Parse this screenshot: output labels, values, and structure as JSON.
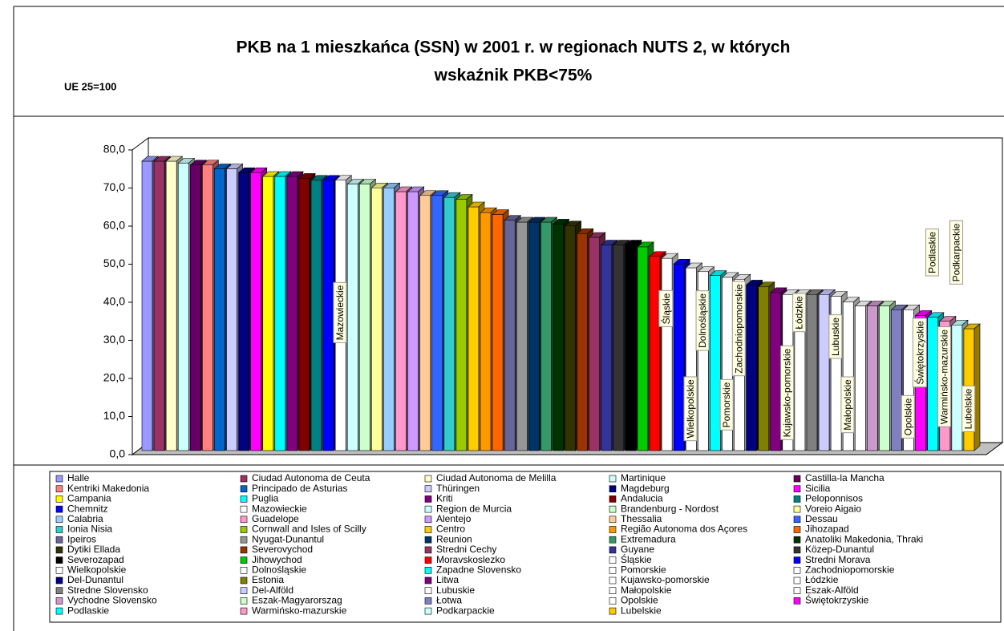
{
  "chart_data": {
    "type": "bar3d",
    "title": "PKB na 1 mieszkańca (SSN) w 2001 r. w regionach NUTS 2, w których",
    "title_line2": "wskaźnik PKB<75%",
    "ylabel": "UE 25=100",
    "categories": [
      "Halle",
      "Ciudad Autonoma de Ceuta",
      "Ciudad Autonoma de Melilla",
      "Martinique",
      "Castilla-la Mancha",
      "Kentriki Makedonia",
      "Principado de Asturias",
      "Thüringen",
      "Magdeburg",
      "Sicilia",
      "Campania",
      "Puglia",
      "Kriti",
      "Andalucia",
      "Peloponnisos",
      "Chemnitz",
      "Mazowieckie",
      "Region de Murcia",
      "Brandenburg - Nordost",
      "Voreio Aigaio",
      "Calabria",
      "Guadelope",
      "Alentejo",
      "Thessalia",
      "Dessau",
      "Ionia Nisia",
      "Cornwall and Isles of Scilly",
      "Centro",
      "Região Autonoma dos Açores",
      "Jihozapad",
      "Ipeiros",
      "Nyugat-Dunantul",
      "Reunion",
      "Extremadura",
      "Anatoliki Makedonia, Thraki",
      "Dytiki Ellada",
      "Severovychod",
      "Stredni Cechy",
      "Guyane",
      "Közep-Dunantul",
      "Severozapad",
      "Jihowychod",
      "Moravskoslezko",
      "Śląskie",
      "Stredni Morava",
      "Wielkopolskie",
      "Dolnośląskie",
      "Zapadne Slovensko",
      "Pomorskie",
      "Zachodniopomorskie",
      "Del-Dunantul",
      "Estonia",
      "Litwa",
      "Kujawsko-pomorskie",
      "Łódzkie",
      "Stredne Slovensko",
      "Del-Alföld",
      "Lubuskie",
      "Małopolskie",
      "Eszak-Alföld",
      "Vychodne Slovensko",
      "Eszak-Magyarorszag",
      "Łotwa",
      "Opolskie",
      "Świętokrzyskie",
      "Podlaskie",
      "Warmińsko-mazurskie",
      "Podkarpackie",
      "Lubelskie"
    ],
    "values": [
      76,
      76,
      76,
      75.5,
      75,
      75,
      74,
      74,
      73,
      73,
      72,
      72,
      72,
      71.5,
      71,
      71,
      71,
      70,
      70,
      69,
      69,
      68,
      68,
      67,
      67,
      66.5,
      66,
      64,
      62.5,
      62,
      60.5,
      60,
      60,
      60,
      59.5,
      59,
      57,
      56,
      54,
      54,
      54,
      53.5,
      51,
      50.5,
      49,
      48,
      47,
      46,
      45.5,
      45,
      43.5,
      43,
      41.5,
      41,
      41,
      41,
      41,
      40.5,
      39,
      38,
      38,
      38,
      37,
      37,
      35.5,
      35,
      34,
      33,
      32
    ],
    "colors": [
      "#9999ff",
      "#993366",
      "#ffffcc",
      "#ccffff",
      "#660066",
      "#ff8080",
      "#0066cc",
      "#ccccff",
      "#000080",
      "#ff00ff",
      "#ffff00",
      "#00ffff",
      "#800080",
      "#800000",
      "#008080",
      "#0000ff",
      "#ffffff",
      "#ccffff",
      "#ccffcc",
      "#ffff99",
      "#99ccff",
      "#ff99cc",
      "#cc99ff",
      "#ffcc99",
      "#3366ff",
      "#33cccc",
      "#99cc00",
      "#ffcc00",
      "#ff9900",
      "#ff6600",
      "#666699",
      "#969696",
      "#003366",
      "#339966",
      "#003300",
      "#333300",
      "#993300",
      "#993366",
      "#333399",
      "#333333",
      "#000000",
      "#00cc00",
      "#ff0000",
      "#ffffff",
      "#0000ff",
      "#ffffff",
      "#ffffff",
      "#00ffff",
      "#ffffff",
      "#ffffff",
      "#000080",
      "#808000",
      "#800080",
      "#ffffff",
      "#ffffff",
      "#808080",
      "#ccccff",
      "#ffffff",
      "#ffffff",
      "#ffffff",
      "#cc99cc",
      "#ccffcc",
      "#8080c0",
      "#ffffff",
      "#ff00ff",
      "#00ffff",
      "#ff99cc",
      "#ccffff",
      "#ffcc00"
    ],
    "ylim": [
      0,
      80
    ],
    "yticks": [
      {
        "value": 0,
        "label": "0,0"
      },
      {
        "value": 10,
        "label": "10,0"
      },
      {
        "value": 20,
        "label": "20,0"
      },
      {
        "value": 30,
        "label": "30,0"
      },
      {
        "value": 40,
        "label": "40,0"
      },
      {
        "value": 50,
        "label": "50,0"
      },
      {
        "value": 60,
        "label": "60,0"
      },
      {
        "value": 70,
        "label": "70,0"
      },
      {
        "value": 80,
        "label": "80,0"
      }
    ]
  }
}
